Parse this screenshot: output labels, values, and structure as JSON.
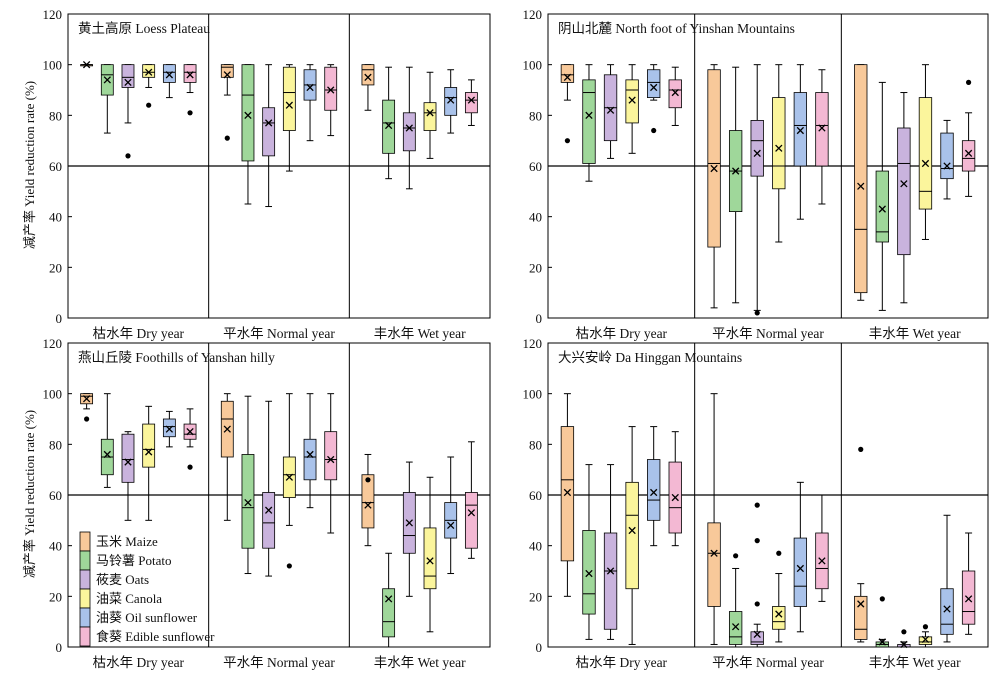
{
  "figure": {
    "y_axis_label": "减产率 Yield reduction rate (%)",
    "group_labels": [
      "枯水年 Dry year",
      "平水年 Normal year",
      "丰水年 Wet year"
    ],
    "legend": [
      {
        "label": "玉米 Maize",
        "color": "#f8c99a"
      },
      {
        "label": "马铃薯 Potato",
        "color": "#9fd79a"
      },
      {
        "label": "莜麦 Oats",
        "color": "#c9b3dd"
      },
      {
        "label": "油菜 Canola",
        "color": "#fbf59c"
      },
      {
        "label": "油葵 Oil sunflower",
        "color": "#a9c2ea"
      },
      {
        "label": "食葵 Edible sunflower",
        "color": "#f3b8d3"
      }
    ]
  },
  "chart_data": [
    {
      "type": "box",
      "title": "黄土高原 Loess Plateau",
      "ylim": [
        0,
        120
      ],
      "yticks": [
        0,
        20,
        40,
        60,
        80,
        100,
        120
      ],
      "threshold": 60,
      "groups": [
        "枯水年 Dry year",
        "平水年 Normal year",
        "丰水年 Wet year"
      ],
      "series": [
        "玉米 Maize",
        "马铃薯 Potato",
        "莜麦 Oats",
        "油菜 Canola",
        "油葵 Oil sunflower",
        "食葵 Edible sunflower"
      ],
      "boxes": [
        [
          [
            100,
            100,
            100,
            100,
            100,
            100,
            []
          ],
          [
            73,
            88,
            96,
            100,
            100,
            94,
            []
          ],
          [
            77,
            91,
            95,
            100,
            100,
            93,
            [
              64
            ]
          ],
          [
            91,
            95,
            97,
            100,
            100,
            97,
            [
              84
            ]
          ],
          [
            87,
            93,
            97,
            100,
            100,
            96,
            []
          ],
          [
            89,
            93,
            97,
            100,
            100,
            96,
            [
              81
            ]
          ]
        ],
        [
          [
            88,
            95,
            99,
            100,
            100,
            96,
            [
              71
            ]
          ],
          [
            45,
            62,
            88,
            100,
            100,
            80,
            []
          ],
          [
            44,
            64,
            77,
            83,
            100,
            77,
            []
          ],
          [
            58,
            74,
            89,
            99,
            100,
            84,
            []
          ],
          [
            70,
            86,
            92,
            98,
            100,
            91,
            []
          ],
          [
            72,
            82,
            90,
            99,
            100,
            90,
            []
          ]
        ],
        [
          [
            82,
            92,
            98,
            100,
            100,
            95,
            []
          ],
          [
            55,
            65,
            77,
            86,
            99,
            76,
            []
          ],
          [
            51,
            66,
            75,
            81,
            99,
            75,
            []
          ],
          [
            63,
            74,
            81,
            85,
            97,
            81,
            []
          ],
          [
            73,
            80,
            87,
            91,
            98,
            86,
            []
          ],
          [
            76,
            81,
            86,
            89,
            94,
            86,
            []
          ]
        ]
      ]
    },
    {
      "type": "box",
      "title": "阴山北麓 North foot of Yinshan Mountains",
      "ylim": [
        0,
        120
      ],
      "yticks": [
        0,
        20,
        40,
        60,
        80,
        100,
        120
      ],
      "threshold": 60,
      "groups": [
        "枯水年 Dry year",
        "平水年 Normal year",
        "丰水年 Wet year"
      ],
      "series": [
        "玉米 Maize",
        "马铃薯 Potato",
        "莜麦 Oats",
        "油菜 Canola",
        "油葵 Oil sunflower",
        "食葵 Edible sunflower"
      ],
      "boxes": [
        [
          [
            86,
            93,
            96,
            100,
            100,
            95,
            [
              70
            ]
          ],
          [
            54,
            61,
            89,
            94,
            100,
            80,
            []
          ],
          [
            63,
            70,
            83,
            96,
            100,
            82,
            []
          ],
          [
            65,
            77,
            90,
            94,
            100,
            86,
            []
          ],
          [
            86,
            87,
            93,
            98,
            100,
            91,
            [
              74
            ]
          ],
          [
            76,
            83,
            90,
            94,
            99,
            89,
            []
          ]
        ],
        [
          [
            4,
            28,
            61,
            98,
            100,
            59,
            []
          ],
          [
            6,
            42,
            58,
            74,
            99,
            58,
            []
          ],
          [
            3,
            56,
            70,
            78,
            100,
            65,
            [
              2
            ]
          ],
          [
            30,
            51,
            60,
            87,
            100,
            67,
            []
          ],
          [
            39,
            60,
            76,
            89,
            100,
            74,
            []
          ],
          [
            45,
            60,
            76,
            89,
            98,
            75,
            []
          ]
        ],
        [
          [
            7,
            10,
            35,
            100,
            100,
            52,
            []
          ],
          [
            3,
            30,
            34,
            58,
            93,
            43,
            []
          ],
          [
            6,
            25,
            61,
            75,
            89,
            53,
            []
          ],
          [
            31,
            43,
            50,
            87,
            100,
            61,
            []
          ],
          [
            47,
            55,
            59,
            73,
            78,
            60,
            []
          ],
          [
            48,
            58,
            63,
            70,
            81,
            65,
            [
              93
            ]
          ]
        ]
      ]
    },
    {
      "type": "box",
      "title": "燕山丘陵 Foothills of Yanshan hilly",
      "ylim": [
        0,
        120
      ],
      "yticks": [
        0,
        20,
        40,
        60,
        80,
        100,
        120
      ],
      "threshold": 60,
      "groups": [
        "枯水年 Dry year",
        "平水年 Normal year",
        "丰水年 Wet year"
      ],
      "series": [
        "玉米 Maize",
        "马铃薯 Potato",
        "莜麦 Oats",
        "油菜 Canola",
        "油葵 Oil sunflower",
        "食葵 Edible sunflower"
      ],
      "boxes": [
        [
          [
            94,
            96,
            99,
            100,
            100,
            98,
            [
              90
            ]
          ],
          [
            63,
            68,
            75,
            82,
            100,
            76,
            []
          ],
          [
            50,
            65,
            74,
            84,
            85,
            73,
            []
          ],
          [
            50,
            71,
            78,
            88,
            95,
            77,
            []
          ],
          [
            79,
            83,
            87,
            90,
            93,
            86,
            []
          ],
          [
            79,
            82,
            84,
            88,
            94,
            85,
            [
              71
            ]
          ]
        ],
        [
          [
            50,
            75,
            90,
            97,
            100,
            86,
            []
          ],
          [
            29,
            39,
            55,
            76,
            99,
            57,
            []
          ],
          [
            28,
            39,
            49,
            61,
            97,
            54,
            []
          ],
          [
            48,
            59,
            68,
            75,
            100,
            67,
            [
              32
            ]
          ],
          [
            55,
            66,
            75,
            82,
            100,
            76,
            []
          ],
          [
            45,
            66,
            74,
            85,
            100,
            74,
            []
          ]
        ],
        [
          [
            40,
            47,
            57,
            68,
            76,
            56,
            [
              66
            ]
          ],
          [
            0,
            4,
            10,
            23,
            37,
            19,
            []
          ],
          [
            20,
            37,
            44,
            61,
            73,
            49,
            []
          ],
          [
            6,
            23,
            28,
            47,
            67,
            34,
            []
          ],
          [
            29,
            43,
            50,
            57,
            75,
            48,
            []
          ],
          [
            35,
            39,
            56,
            61,
            81,
            53,
            []
          ]
        ]
      ]
    },
    {
      "type": "box",
      "title": "大兴安岭 Da Hinggan Mountains",
      "ylim": [
        0,
        120
      ],
      "yticks": [
        0,
        20,
        40,
        60,
        80,
        100,
        120
      ],
      "threshold": 60,
      "groups": [
        "枯水年 Dry year",
        "平水年 Normal year",
        "丰水年 Wet year"
      ],
      "series": [
        "玉米 Maize",
        "马铃薯 Potato",
        "莜麦 Oats",
        "油菜 Canola",
        "油葵 Oil sunflower",
        "食葵 Edible sunflower"
      ],
      "boxes": [
        [
          [
            20,
            34,
            66,
            87,
            100,
            61,
            []
          ],
          [
            3,
            13,
            21,
            46,
            72,
            29,
            []
          ],
          [
            3,
            7,
            30,
            45,
            72,
            30,
            []
          ],
          [
            1,
            23,
            52,
            65,
            87,
            46,
            []
          ],
          [
            40,
            50,
            58,
            74,
            87,
            61,
            []
          ],
          [
            40,
            45,
            55,
            73,
            85,
            59,
            []
          ]
        ],
        [
          [
            1,
            16,
            37,
            49,
            100,
            37,
            []
          ],
          [
            0,
            1,
            4,
            14,
            31,
            8,
            [
              36
            ]
          ],
          [
            0,
            1,
            2,
            6,
            9,
            5,
            [
              56,
              42,
              17
            ]
          ],
          [
            2,
            7,
            10,
            16,
            29,
            13,
            [
              37
            ]
          ],
          [
            6,
            16,
            24,
            43,
            65,
            31,
            []
          ],
          [
            18,
            23,
            31,
            45,
            60,
            34,
            []
          ]
        ],
        [
          [
            2,
            3,
            7,
            20,
            25,
            17,
            [
              78
            ]
          ],
          [
            0,
            0,
            1,
            2,
            3,
            2,
            [
              19
            ]
          ],
          [
            0,
            0,
            0,
            1,
            2,
            1,
            [
              6
            ]
          ],
          [
            0,
            1,
            2,
            4,
            6,
            3,
            [
              8
            ]
          ],
          [
            2,
            5,
            9,
            23,
            52,
            15,
            []
          ],
          [
            5,
            9,
            14,
            30,
            45,
            19,
            []
          ]
        ]
      ]
    }
  ]
}
